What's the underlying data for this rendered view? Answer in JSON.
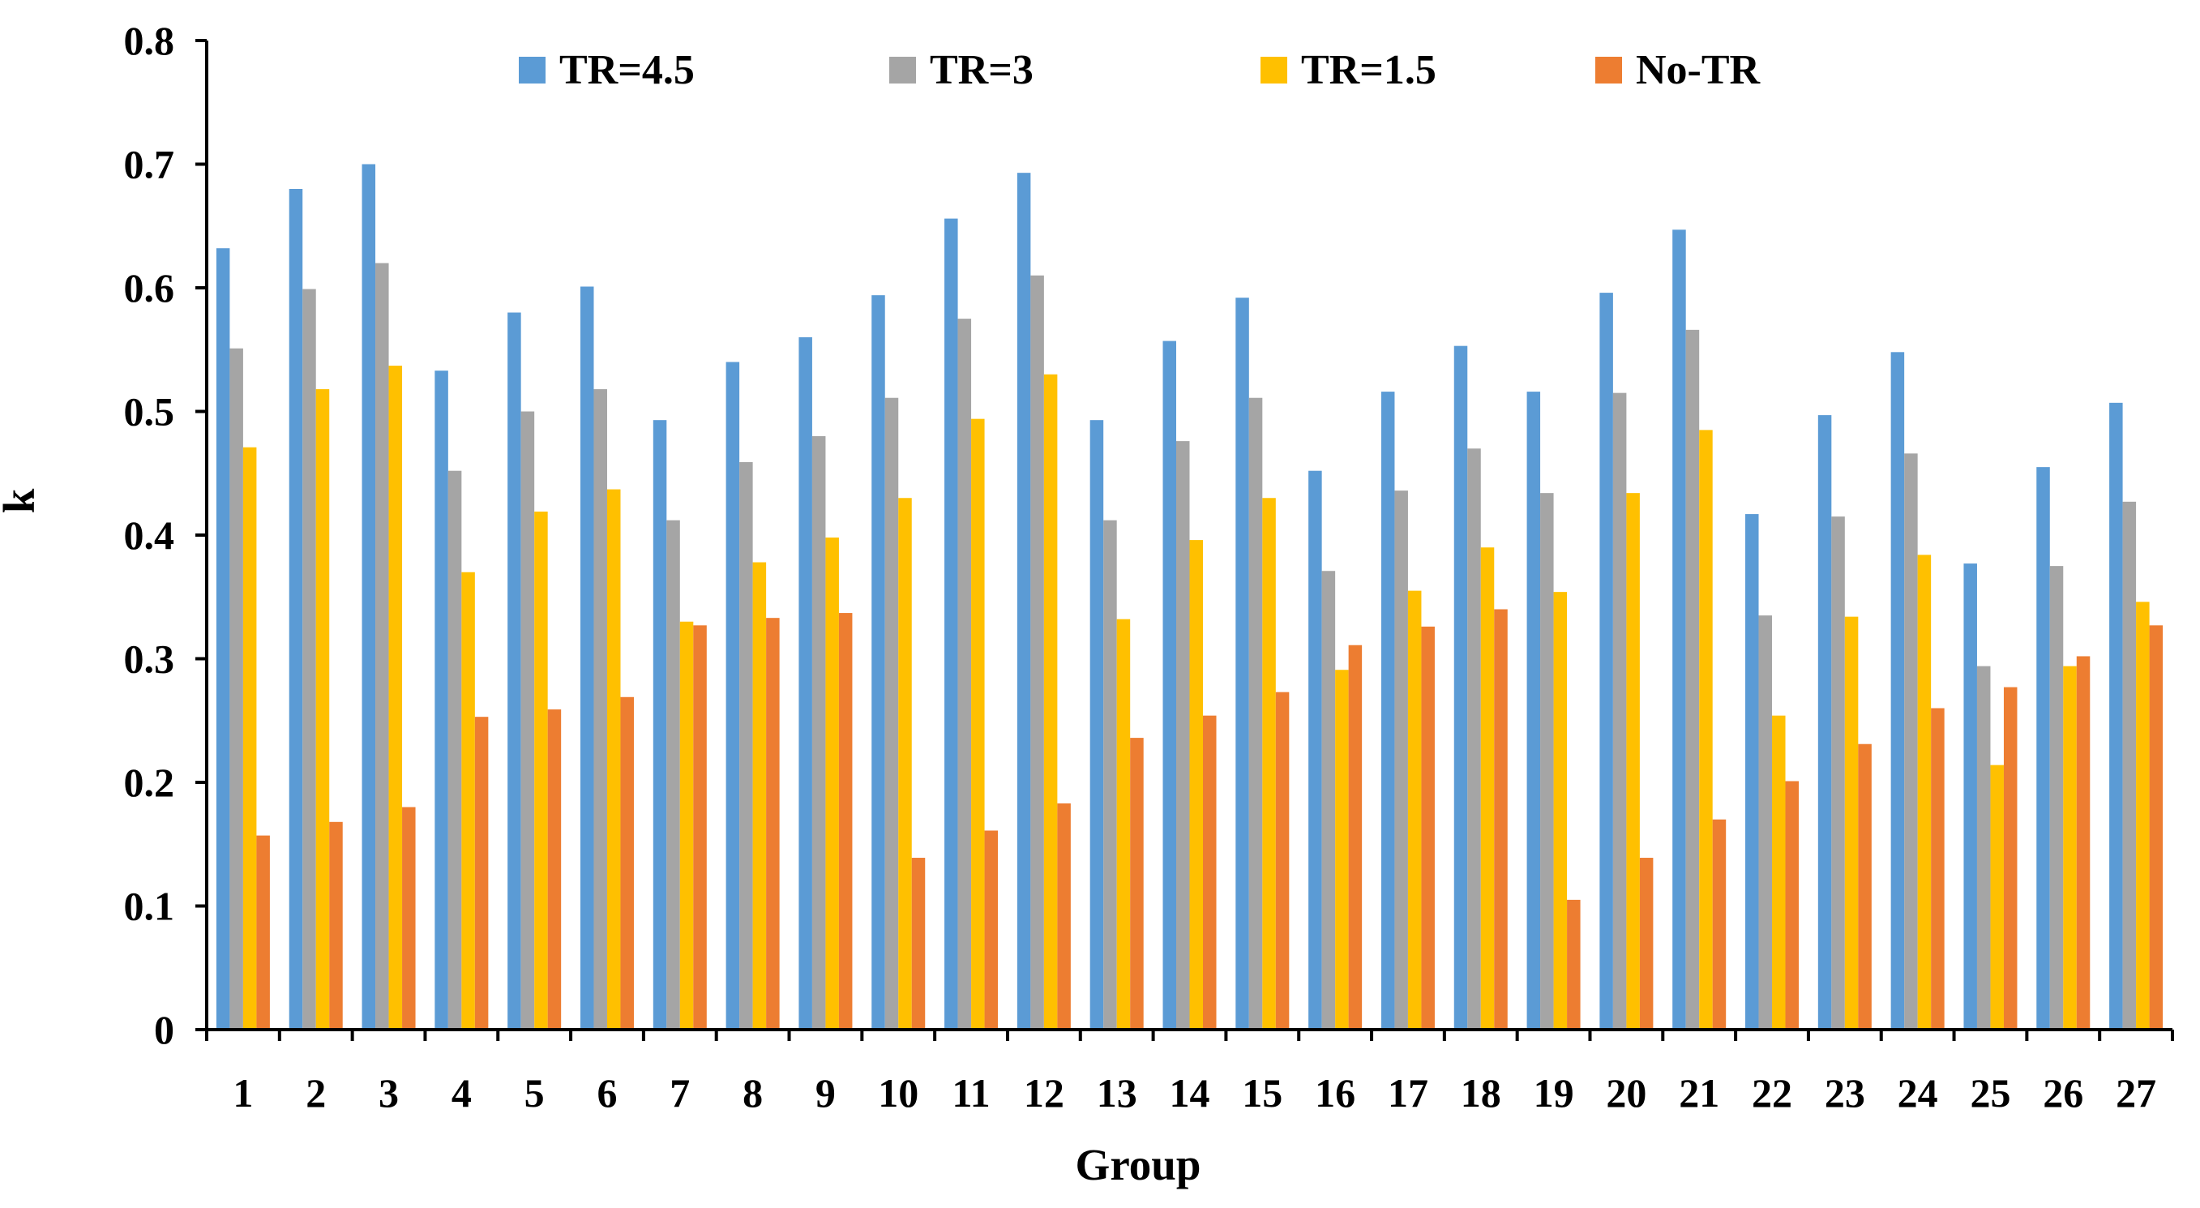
{
  "chart_data": {
    "type": "bar",
    "title": "",
    "xlabel": "Group",
    "ylabel": "k",
    "ylim": [
      0,
      0.8
    ],
    "yticks": [
      "0",
      "0.1",
      "0.2",
      "0.3",
      "0.4",
      "0.5",
      "0.6",
      "0.7",
      "0.8"
    ],
    "grid": false,
    "legend_position": "top",
    "categories": [
      "1",
      "2",
      "3",
      "4",
      "5",
      "6",
      "7",
      "8",
      "9",
      "10",
      "11",
      "12",
      "13",
      "14",
      "15",
      "16",
      "17",
      "18",
      "19",
      "20",
      "21",
      "22",
      "23",
      "24",
      "25",
      "26",
      "27"
    ],
    "series": [
      {
        "name": "TR=4.5",
        "color": "#5B9BD5",
        "values": [
          0.632,
          0.68,
          0.7,
          0.533,
          0.58,
          0.601,
          0.493,
          0.54,
          0.56,
          0.594,
          0.656,
          0.693,
          0.493,
          0.557,
          0.592,
          0.452,
          0.516,
          0.553,
          0.516,
          0.596,
          0.647,
          0.417,
          0.497,
          0.548,
          0.377,
          0.455,
          0.507
        ]
      },
      {
        "name": "TR=3",
        "color": "#A5A5A5",
        "values": [
          0.551,
          0.599,
          0.62,
          0.452,
          0.5,
          0.518,
          0.412,
          0.459,
          0.48,
          0.511,
          0.575,
          0.61,
          0.412,
          0.476,
          0.511,
          0.371,
          0.436,
          0.47,
          0.434,
          0.515,
          0.566,
          0.335,
          0.415,
          0.466,
          0.294,
          0.375,
          0.427
        ]
      },
      {
        "name": "TR=1.5",
        "color": "#FFC000",
        "values": [
          0.471,
          0.518,
          0.537,
          0.37,
          0.419,
          0.437,
          0.33,
          0.378,
          0.398,
          0.43,
          0.494,
          0.53,
          0.332,
          0.396,
          0.43,
          0.291,
          0.355,
          0.39,
          0.354,
          0.434,
          0.485,
          0.254,
          0.334,
          0.384,
          0.214,
          0.294,
          0.346
        ]
      },
      {
        "name": "No-TR",
        "color": "#ED7D31",
        "values": [
          0.157,
          0.168,
          0.18,
          0.253,
          0.259,
          0.269,
          0.327,
          0.333,
          0.337,
          0.139,
          0.161,
          0.183,
          0.236,
          0.254,
          0.273,
          0.311,
          0.326,
          0.34,
          0.105,
          0.139,
          0.17,
          0.201,
          0.231,
          0.26,
          0.277,
          0.302,
          0.327
        ]
      }
    ]
  }
}
